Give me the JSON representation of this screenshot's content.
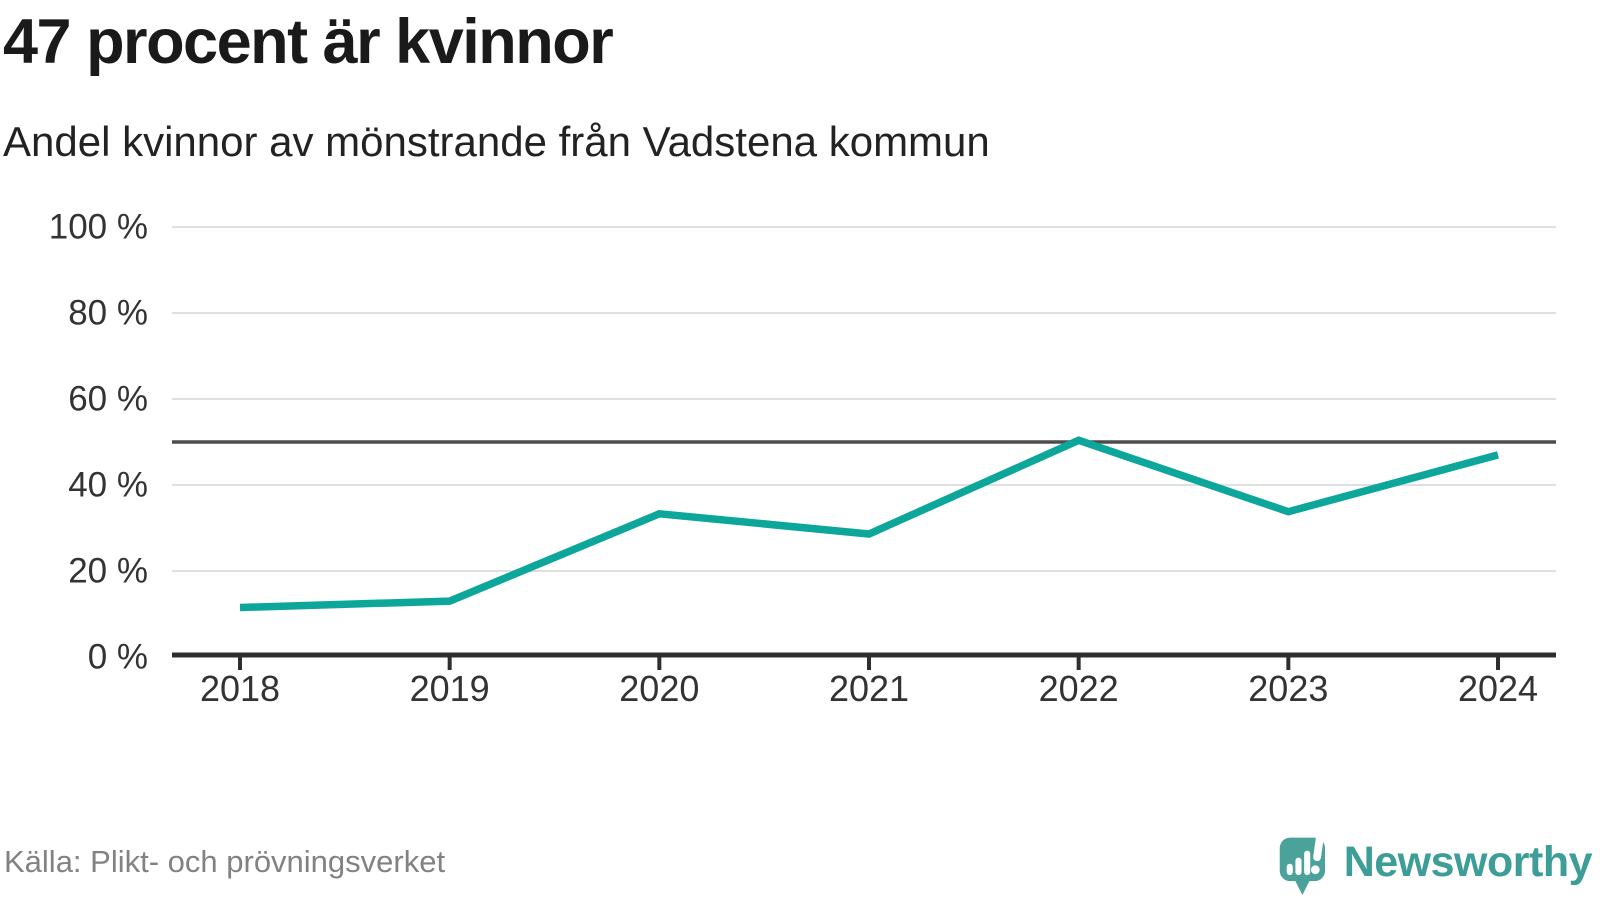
{
  "header": {
    "title": "47 procent är kvinnor",
    "subtitle": "Andel kvinnor av mönstrande från Vadstena kommun"
  },
  "chart_data": {
    "type": "line",
    "title": "47 procent är kvinnor",
    "subtitle": "Andel kvinnor av mönstrande från Vadstena kommun",
    "categories": [
      "2018",
      "2019",
      "2020",
      "2021",
      "2022",
      "2023",
      "2024"
    ],
    "series": [
      {
        "name": "Andel kvinnor av mönstrande",
        "values": [
          11.5,
          13,
          33.3,
          28.6,
          50.4,
          33.8,
          47
        ]
      }
    ],
    "unit": "%",
    "ylim": [
      0,
      100
    ],
    "yticks": [
      0,
      20,
      40,
      60,
      80,
      100
    ],
    "ytick_labels": [
      "0 %",
      "20 %",
      "40 %",
      "60 %",
      "80 %",
      "100 %"
    ],
    "reference_line_value": 50,
    "grid": true,
    "legend": false,
    "colors": {
      "line": "#0da69b",
      "grid": "#e0e0e0",
      "reference": "#4d4d4d",
      "axis": "#2e2e2e",
      "tick_label": "#333333"
    }
  },
  "footer": {
    "source": "Källa: Plikt- och prövningsverket",
    "brand": "Newsworthy",
    "brand_color": "#3c9e97",
    "logo_color": "#4ba29b"
  }
}
